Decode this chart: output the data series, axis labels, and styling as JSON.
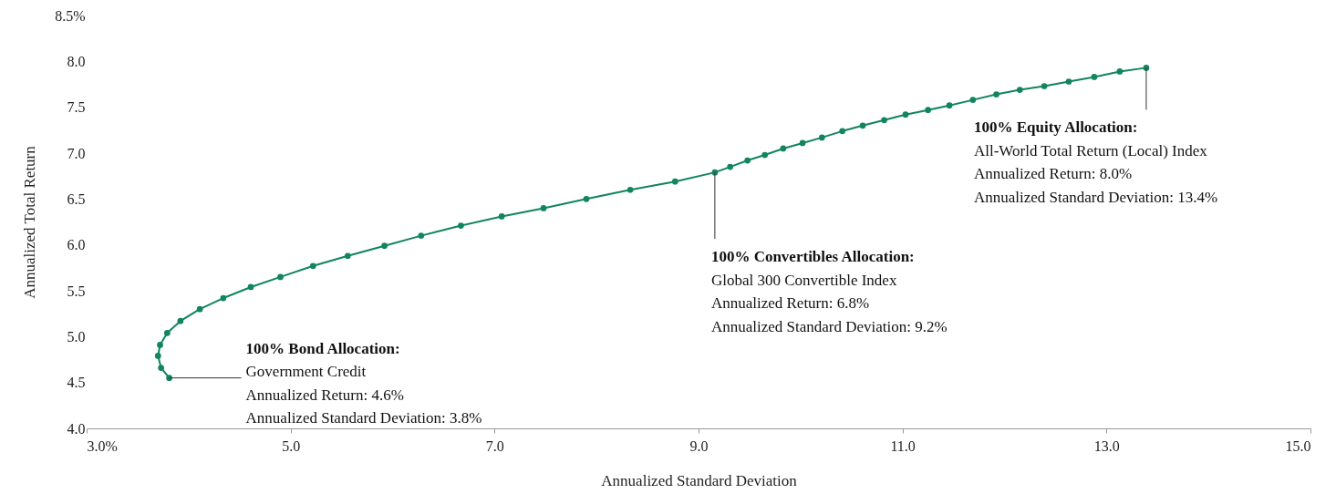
{
  "chart_data": {
    "type": "line",
    "xlabel": "Annualized Standard Deviation",
    "ylabel": "Annualized  Total Return",
    "x": [
      3.81,
      3.73,
      3.7,
      3.72,
      3.79,
      3.92,
      4.11,
      4.34,
      4.61,
      4.9,
      5.22,
      5.56,
      5.92,
      6.28,
      6.67,
      7.07,
      7.48,
      7.9,
      8.33,
      8.77,
      9.16,
      9.31,
      9.48,
      9.65,
      9.83,
      10.02,
      10.21,
      10.41,
      10.61,
      10.82,
      11.03,
      11.25,
      11.46,
      11.69,
      11.92,
      12.15,
      12.39,
      12.63,
      12.88,
      13.13,
      13.39
    ],
    "series": [
      {
        "color": "#118460",
        "values": [
          4.55,
          4.66,
          4.79,
          4.91,
          5.04,
          5.17,
          5.3,
          5.42,
          5.54,
          5.65,
          5.77,
          5.88,
          5.99,
          6.1,
          6.21,
          6.31,
          6.4,
          6.5,
          6.6,
          6.69,
          6.79,
          6.85,
          6.92,
          6.98,
          7.05,
          7.11,
          7.17,
          7.24,
          7.3,
          7.36,
          7.42,
          7.47,
          7.52,
          7.58,
          7.64,
          7.69,
          7.73,
          7.78,
          7.83,
          7.89,
          7.93
        ]
      }
    ],
    "xlim": [
      3,
      15
    ],
    "xticks": [
      {
        "value": 3,
        "label": "3.0%"
      },
      {
        "value": 5,
        "label": "5.0"
      },
      {
        "value": 7,
        "label": "7.0"
      },
      {
        "value": 9,
        "label": "9.0"
      },
      {
        "value": 11,
        "label": "11.0"
      },
      {
        "value": 13,
        "label": "13.0"
      },
      {
        "value": 15,
        "label": "15.0"
      }
    ],
    "ylim": [
      4,
      8.5
    ],
    "yticks": [
      {
        "value": 4,
        "label": "4.0"
      },
      {
        "value": 4.5,
        "label": "4.5"
      },
      {
        "value": 5,
        "label": "5.0"
      },
      {
        "value": 5.5,
        "label": "5.5"
      },
      {
        "value": 6,
        "label": "6.0"
      },
      {
        "value": 6.5,
        "label": "6.5"
      },
      {
        "value": 7,
        "label": "7.0"
      },
      {
        "value": 7.5,
        "label": "7.5"
      },
      {
        "value": 8,
        "label": "8.0"
      },
      {
        "value": 8.5,
        "label": "8.5%"
      }
    ],
    "marker": "circle",
    "line_style": "solid",
    "grid": false,
    "annotations": [
      {
        "text": "100% Bond Allocation:\nGovernment Credit\nAnnualized Return: 4.6%\nAnnualized Standard Deviation: 3.8%",
        "x": 3.81,
        "y": 4.55
      },
      {
        "text": "100% Convertibles Allocation:\nGlobal 300 Convertible Index\nAnnualized Return: 6.8%\nAnnualized Standard Deviation: 9.2%",
        "x": 9.16,
        "y": 6.79
      },
      {
        "text": "100% Equity Allocation:\nAll-World Total Return (Local) Index\nAnnualized Return: 8.0%\nAnnualized Standard Deviation: 13.4%",
        "x": 13.39,
        "y": 7.93
      }
    ]
  }
}
